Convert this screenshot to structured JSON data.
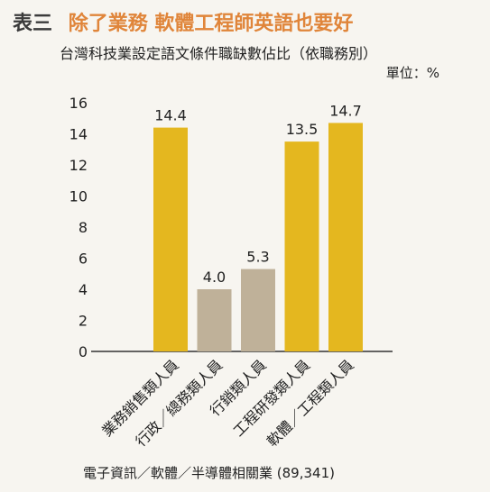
{
  "header": {
    "label": "表三",
    "title": "除了業務 軟體工程師英語也要好"
  },
  "chart_data": {
    "type": "bar",
    "title": "台灣科技業設定語文條件職缺數佔比（依職務別）",
    "unit": "單位：%",
    "categories": [
      "業務銷售類人員",
      "行政／總務類人員",
      "行銷類人員",
      "工程研發類人員",
      "軟體／工程類人員"
    ],
    "values": [
      14.4,
      4.0,
      5.3,
      13.5,
      14.7
    ],
    "value_labels": [
      "14.4",
      "4.0",
      "5.3",
      "13.5",
      "14.7"
    ],
    "colors": [
      "#e4b71f",
      "#bfb199",
      "#bfb199",
      "#e4b71f",
      "#e4b71f"
    ],
    "ylim": [
      0,
      16
    ],
    "yticks": [
      "0",
      "2",
      "4",
      "6",
      "8",
      "10",
      "12",
      "14",
      "16"
    ],
    "grid": false
  },
  "footer": {
    "source": "電子資訊／軟體／半導體相關業 (89,341)"
  }
}
